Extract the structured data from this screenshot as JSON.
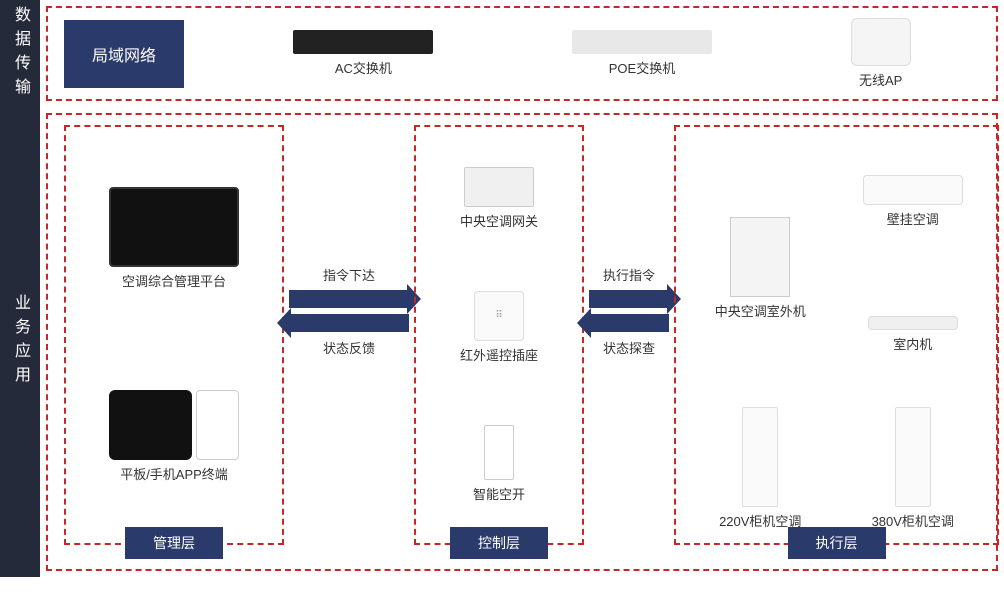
{
  "colors": {
    "sidebar_bg": "#242a3a",
    "badge_bg": "#2a3a6b",
    "border": "#c62828",
    "text": "#333333"
  },
  "rows": {
    "data_transport": {
      "side_label": "数据传输",
      "badge": "局域网络",
      "devices": [
        {
          "name": "ac-switch",
          "label": "AC交换机"
        },
        {
          "name": "poe-switch",
          "label": "POE交换机"
        },
        {
          "name": "wireless-ap",
          "label": "无线AP"
        }
      ]
    },
    "business_app": {
      "side_label": "业务应用",
      "columns": {
        "management": {
          "tag": "管理层",
          "devices": [
            {
              "name": "platform",
              "label": "空调综合管理平台"
            },
            {
              "name": "app-terminal",
              "label": "平板/手机APP终端"
            }
          ]
        },
        "control": {
          "tag": "控制层",
          "devices": [
            {
              "name": "ac-gateway",
              "label": "中央空调网关"
            },
            {
              "name": "ir-socket",
              "label": "红外遥控插座"
            },
            {
              "name": "smart-breaker",
              "label": "智能空开"
            }
          ]
        },
        "execution": {
          "tag": "执行层",
          "devices": [
            {
              "name": "outdoor-unit",
              "label": "中央空调室外机"
            },
            {
              "name": "wall-ac",
              "label": "壁挂空调"
            },
            {
              "name": "indoor-unit",
              "label": "室内机"
            },
            {
              "name": "cabinet-220v",
              "label": "220V柜机空调"
            },
            {
              "name": "cabinet-380v",
              "label": "380V柜机空调"
            }
          ]
        }
      },
      "arrows": {
        "group1": {
          "top": "指令下达",
          "bottom": "状态反馈"
        },
        "group2": {
          "top": "执行指令",
          "bottom": "状态探查"
        }
      }
    }
  }
}
